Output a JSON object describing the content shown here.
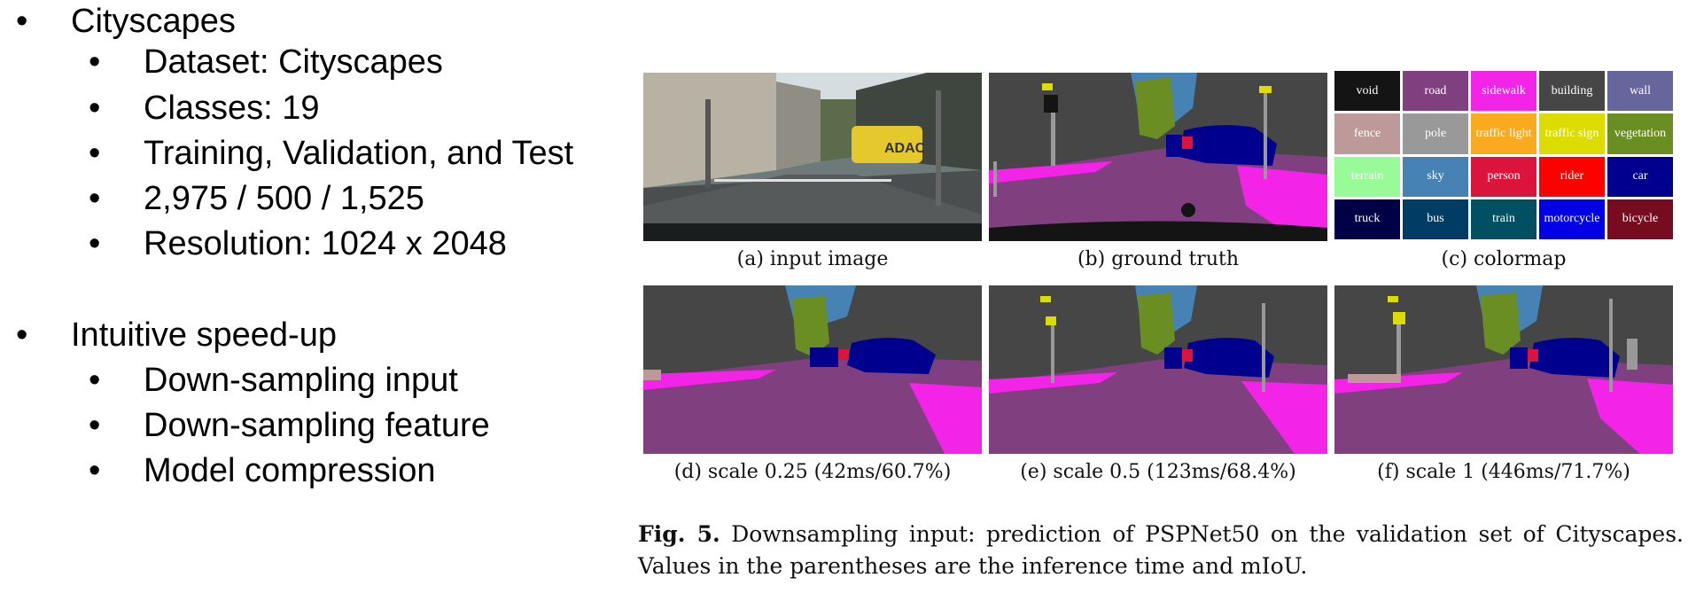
{
  "bullets": {
    "group1": {
      "title": "Cityscapes",
      "items": [
        "Dataset: Cityscapes",
        "Classes: 19",
        "Training, Validation, and Test",
        "2,975 / 500 / 1,525",
        "Resolution: 1024 x 2048"
      ]
    },
    "group2": {
      "title": "Intuitive speed-up",
      "items": [
        "Down-sampling input",
        "Down-sampling feature",
        "Model compression"
      ]
    },
    "bullet_glyph": "•"
  },
  "figure": {
    "captions": {
      "a": "(a) input image",
      "b": "(b) ground truth",
      "c": "(c) colormap",
      "d": "(d) scale 0.25 (42ms/60.7%)",
      "e": "(e) scale 0.5 (123ms/68.4%)",
      "f": "(f) scale 1 (446ms/71.7%)"
    },
    "input_image_sign_text": "ADAC",
    "colormap": [
      {
        "label": "void",
        "color": "#141414"
      },
      {
        "label": "road",
        "color": "#804080"
      },
      {
        "label": "sidewalk",
        "color": "#f423e8"
      },
      {
        "label": "building",
        "color": "#464646"
      },
      {
        "label": "wall",
        "color": "#66669c"
      },
      {
        "label": "fence",
        "color": "#be9999"
      },
      {
        "label": "pole",
        "color": "#999999"
      },
      {
        "label": "traffic light",
        "color": "#faaa1e"
      },
      {
        "label": "traffic sign",
        "color": "#dcdc00"
      },
      {
        "label": "vegetation",
        "color": "#6b8e23"
      },
      {
        "label": "terrain",
        "color": "#98fb98"
      },
      {
        "label": "sky",
        "color": "#4682b4"
      },
      {
        "label": "person",
        "color": "#dc143c"
      },
      {
        "label": "rider",
        "color": "#ff0000"
      },
      {
        "label": "car",
        "color": "#00008e"
      },
      {
        "label": "truck",
        "color": "#000046"
      },
      {
        "label": "bus",
        "color": "#003c64"
      },
      {
        "label": "train",
        "color": "#005064"
      },
      {
        "label": "motorcycle",
        "color": "#0000e6"
      },
      {
        "label": "bicycle",
        "color": "#770b20"
      }
    ],
    "fig_label": "Fig. 5.",
    "fig_text": "Downsampling input: prediction of PSPNet50 on the validation set of Cityscapes. Values in the parentheses are the inference time and mIoU."
  }
}
